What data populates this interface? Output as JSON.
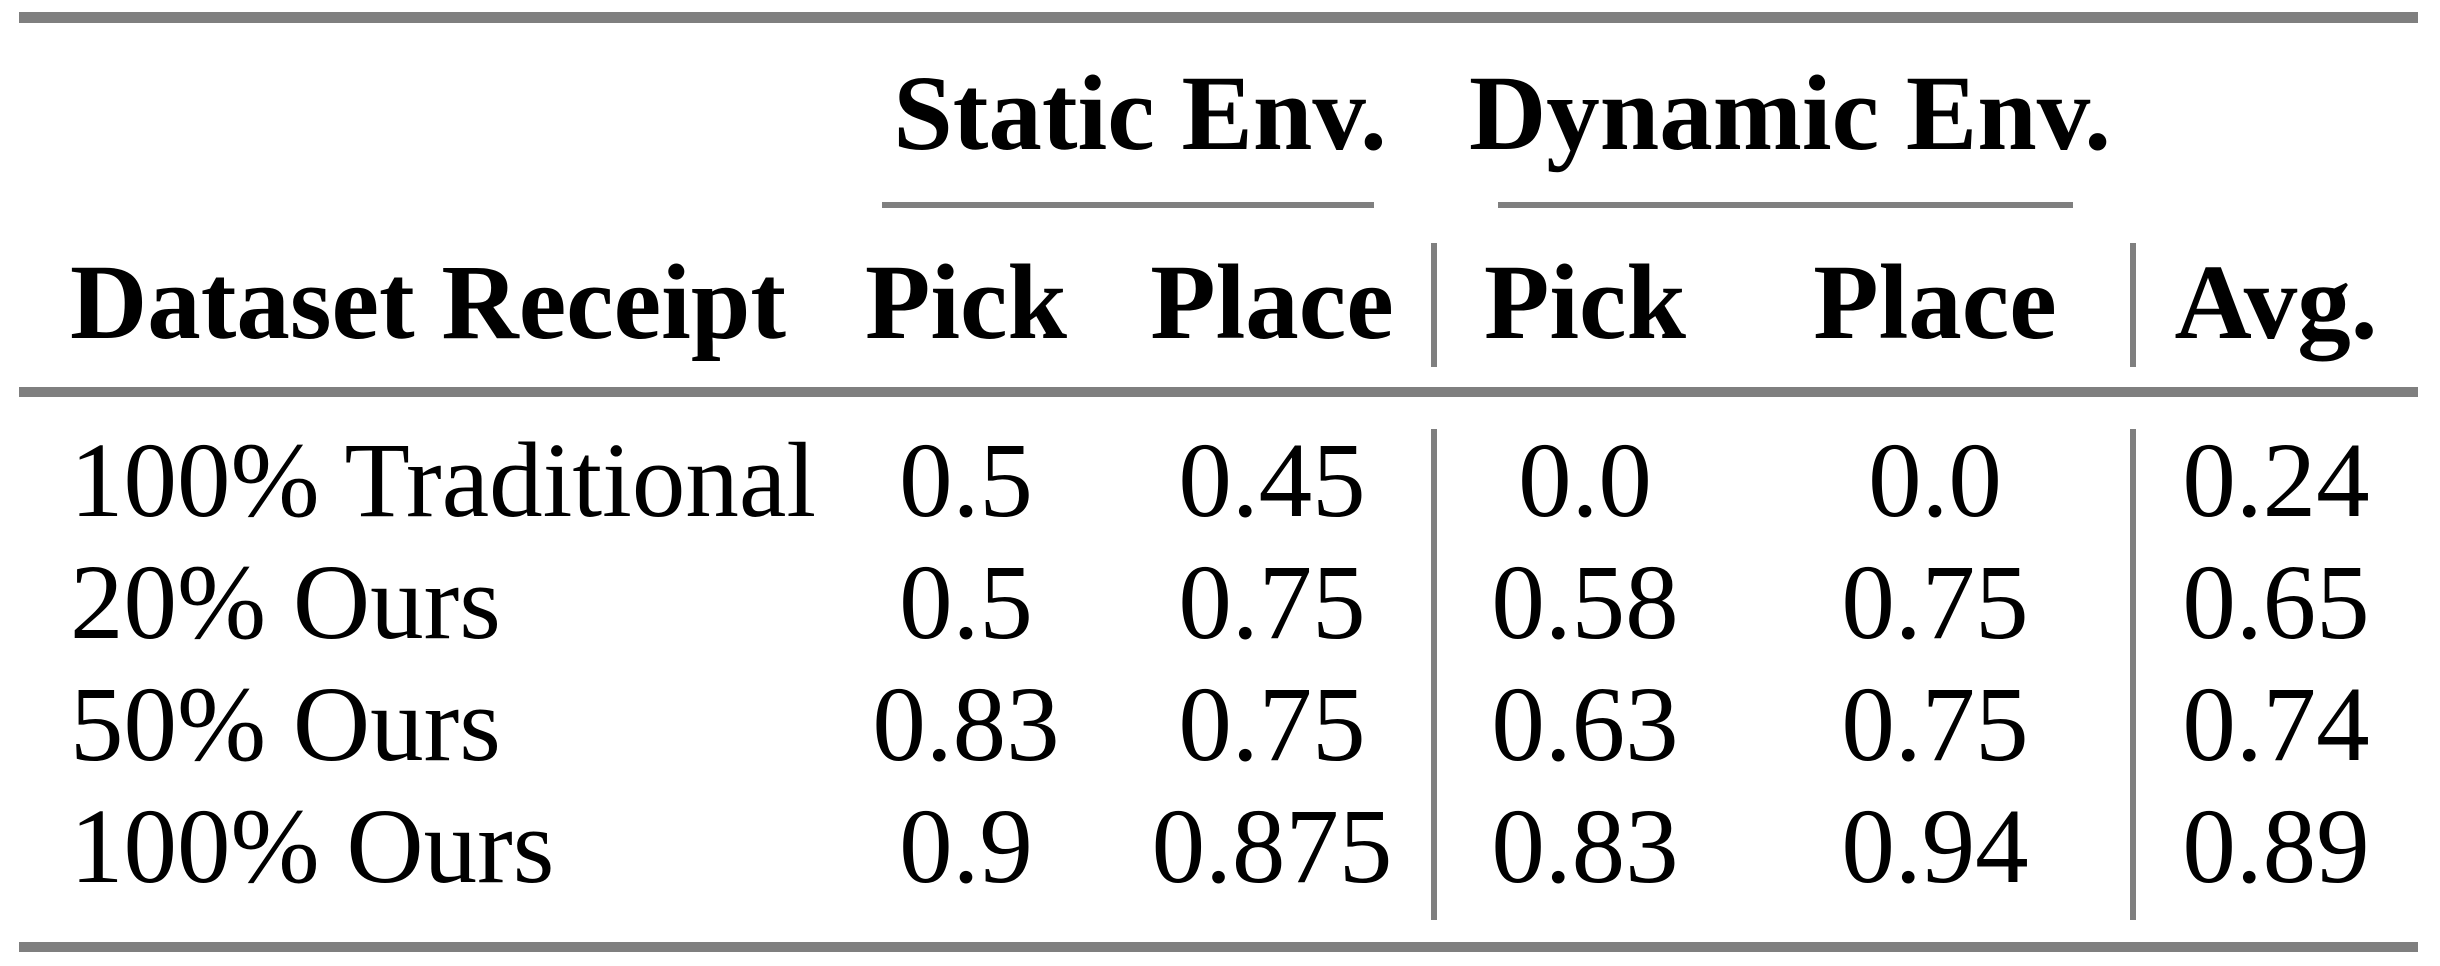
{
  "page": {
    "background": "#ffffff"
  },
  "table": {
    "rule_color": "#7f7f7f",
    "text_color": "#000000",
    "col_groups": [
      {
        "label": "Static Env."
      },
      {
        "label": "Dynamic Env."
      }
    ],
    "headers": {
      "row_label": "Dataset Receipt",
      "static_pick": "Pick",
      "static_place": "Place",
      "dynamic_pick": "Pick",
      "dynamic_place": "Place",
      "avg": "Avg."
    },
    "rows": [
      {
        "label": "100% Traditional",
        "static_pick": "0.5",
        "static_place": "0.45",
        "dynamic_pick": "0.0",
        "dynamic_place": "0.0",
        "avg": "0.24"
      },
      {
        "label": "20% Ours",
        "static_pick": "0.5",
        "static_place": "0.75",
        "dynamic_pick": "0.58",
        "dynamic_place": "0.75",
        "avg": "0.65"
      },
      {
        "label": "50% Ours",
        "static_pick": "0.83",
        "static_place": "0.75",
        "dynamic_pick": "0.63",
        "dynamic_place": "0.75",
        "avg": "0.74"
      },
      {
        "label": "100% Ours",
        "static_pick": "0.9",
        "static_place": "0.875",
        "dynamic_pick": "0.83",
        "dynamic_place": "0.94",
        "avg": "0.89"
      }
    ]
  },
  "chart_data": {
    "type": "table",
    "columns": [
      "Dataset Receipt",
      "Static Env. Pick",
      "Static Env. Place",
      "Dynamic Env. Pick",
      "Dynamic Env. Place",
      "Avg."
    ],
    "rows": [
      [
        "100% Traditional",
        0.5,
        0.45,
        0.0,
        0.0,
        0.24
      ],
      [
        "20% Ours",
        0.5,
        0.75,
        0.58,
        0.75,
        0.65
      ],
      [
        "50% Ours",
        0.83,
        0.75,
        0.63,
        0.75,
        0.74
      ],
      [
        "100% Ours",
        0.9,
        0.875,
        0.83,
        0.94,
        0.89
      ]
    ]
  }
}
